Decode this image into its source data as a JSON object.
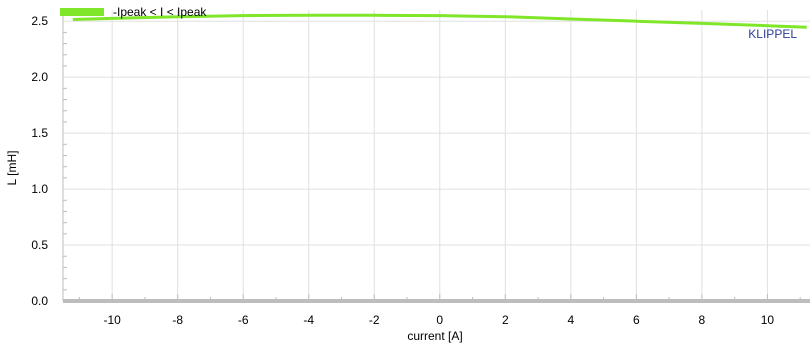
{
  "chart_data": {
    "type": "line",
    "xlabel": "current [A]",
    "ylabel": "L [mH]",
    "watermark": "KLIPPEL",
    "xlim": [
      -11.5,
      11.3
    ],
    "ylim": [
      0,
      2.6
    ],
    "x_ticks": [
      -10,
      -8,
      -6,
      -4,
      -2,
      0,
      2,
      4,
      6,
      8,
      10
    ],
    "y_ticks": [
      0.0,
      0.5,
      1.0,
      1.5,
      2.0,
      2.5
    ],
    "y_tick_labels": [
      "0.0",
      "0.5",
      "1.0",
      "1.5",
      "2.0",
      "2.5"
    ],
    "grid": true,
    "legend_position": "top-left",
    "series": [
      {
        "name": "-Ipeak < I < Ipeak",
        "color": "#7FE62A",
        "x": [
          -11.2,
          -10,
          -8,
          -6,
          -4,
          -2,
          0,
          2,
          4,
          6,
          8,
          10,
          11.2
        ],
        "y": [
          2.515,
          2.525,
          2.54,
          2.55,
          2.553,
          2.553,
          2.55,
          2.54,
          2.52,
          2.5,
          2.48,
          2.46,
          2.445
        ]
      }
    ],
    "colors": {
      "grid": "#e0e0e0",
      "axis": "#bdbdbd",
      "text": "#000000",
      "watermark": "#2c3d99"
    }
  }
}
